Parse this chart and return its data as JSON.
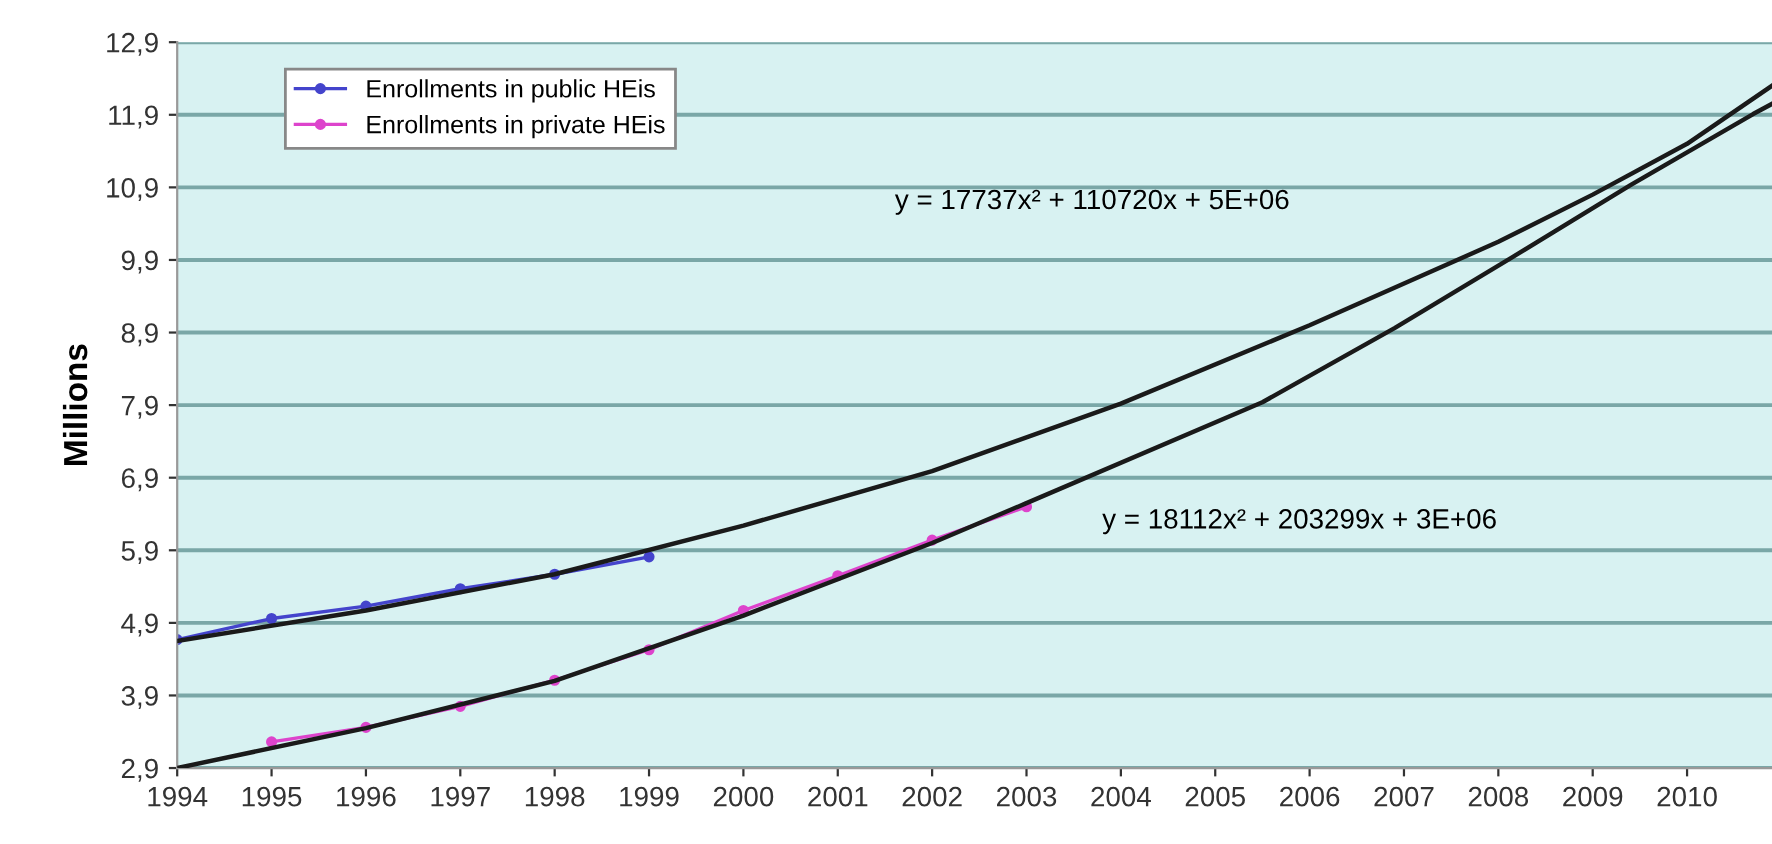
{
  "chart_data": {
    "type": "line",
    "ylabel": "Millions",
    "xlim": [
      1994,
      2010.9
    ],
    "xticks": [
      1994,
      1995,
      1996,
      1997,
      1998,
      1999,
      2000,
      2001,
      2002,
      2003,
      2004,
      2005,
      2006,
      2007,
      2008,
      2009,
      2010
    ],
    "ylim": [
      2.9,
      12.9
    ],
    "yticks": [
      {
        "value": 2.9,
        "label": "2,9"
      },
      {
        "value": 3.9,
        "label": "3,9"
      },
      {
        "value": 4.9,
        "label": "4,9"
      },
      {
        "value": 5.9,
        "label": "5,9"
      },
      {
        "value": 6.9,
        "label": "6,9"
      },
      {
        "value": 7.9,
        "label": "7,9"
      },
      {
        "value": 8.9,
        "label": "8,9"
      },
      {
        "value": 9.9,
        "label": "9,9"
      },
      {
        "value": 10.9,
        "label": "10,9"
      },
      {
        "value": 11.9,
        "label": "11,9"
      },
      {
        "value": 12.9,
        "label": "12,9"
      }
    ],
    "grid": "y",
    "legend": "top left",
    "series": [
      {
        "name": "Enrollments in public HEis",
        "color": "#4444cc",
        "marker": "circle",
        "x": [
          1994,
          1995,
          1996,
          1997,
          1998,
          1999
        ],
        "values": [
          4.67,
          4.96,
          5.13,
          5.37,
          5.57,
          5.81
        ]
      },
      {
        "name": "Enrollments in private HEis",
        "color": "#dd44cc",
        "marker": "circle",
        "x": [
          1995,
          1996,
          1997,
          1998,
          1999,
          2000,
          2001,
          2002,
          2003
        ],
        "values": [
          3.26,
          3.46,
          3.75,
          4.11,
          4.53,
          5.07,
          5.55,
          6.04,
          6.5
        ]
      },
      {
        "color": "#1a1a1a",
        "marker": "none",
        "x": [
          1994,
          1996,
          1998,
          2000,
          2002,
          2004,
          2006,
          2008,
          2009,
          2010,
          2010.9
        ],
        "values": [
          4.65,
          5.07,
          5.57,
          6.24,
          6.99,
          7.92,
          9.0,
          10.15,
          10.8,
          11.5,
          12.3
        ]
      },
      {
        "color": "#1a1a1a",
        "marker": "none",
        "x": [
          1994,
          1996,
          1998,
          2000,
          2002,
          2003,
          2005.5,
          2006.9,
          2008.15,
          2009.4,
          2010.7,
          2010.9
        ],
        "values": [
          2.9,
          3.45,
          4.1,
          5.0,
          6.0,
          6.55,
          7.94,
          8.96,
          9.94,
          10.93,
          11.91,
          12.05
        ]
      }
    ],
    "annotations": [
      "y = 17737x² + 110720x + 5E+06",
      "y = 18112x² + 203299x + 3E+06"
    ]
  }
}
